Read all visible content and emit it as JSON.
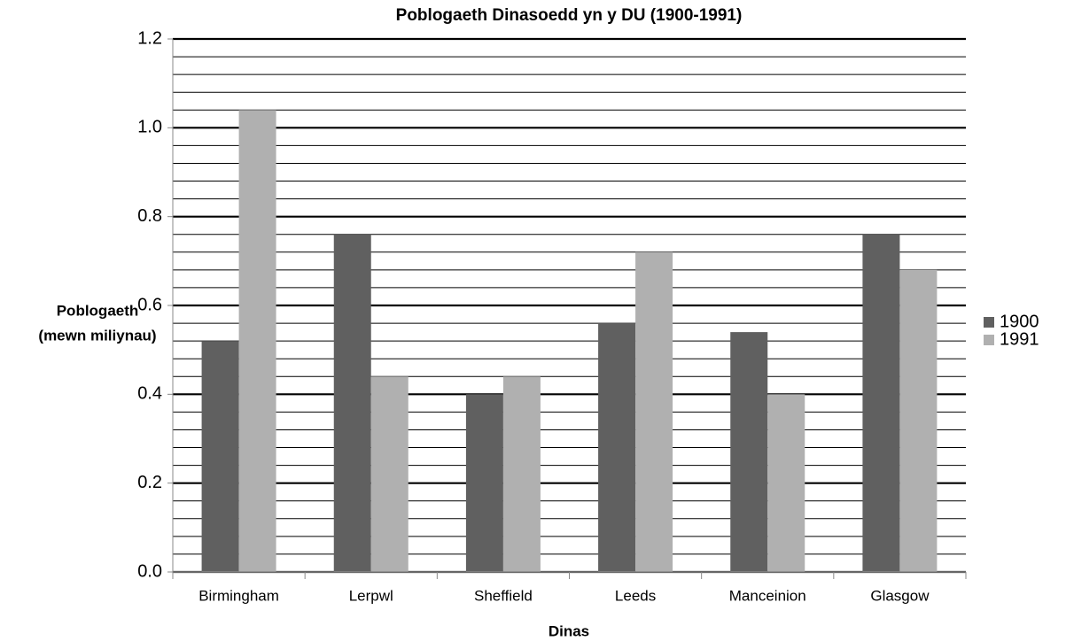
{
  "chart_data": {
    "type": "bar",
    "title": "Poblogaeth Dinasoedd yn y DU (1900-1991)",
    "y_label": [
      "Poblogaeth",
      "(mewn miliynau)"
    ],
    "x_label": "Dinas",
    "categories": [
      "Birmingham",
      "Lerpwl",
      "Sheffield",
      "Leeds",
      "Manceinion",
      "Glasgow"
    ],
    "series": [
      {
        "name": "1900",
        "color": "#606060",
        "values": [
          0.52,
          0.76,
          0.4,
          0.56,
          0.54,
          0.76
        ]
      },
      {
        "name": "1991",
        "color": "#b0b0b0",
        "values": [
          1.04,
          0.44,
          0.44,
          0.72,
          0.4,
          0.68
        ]
      }
    ],
    "ylim": [
      0,
      1.2
    ],
    "yticks": [
      {
        "value": 0,
        "label": "0.0"
      },
      0.2,
      0.4,
      0.6,
      0.8,
      {
        "value": 1,
        "label": "1.0"
      },
      1.2
    ],
    "yminor_ticks": [
      0.04,
      0.08,
      0.12,
      0.16,
      0.24,
      0.28,
      0.32,
      0.36,
      0.44,
      0.48,
      0.52,
      0.56,
      0.64,
      0.68,
      0.72,
      0.76,
      0.84,
      0.88,
      0.92,
      0.96,
      1.04,
      1.08,
      1.12,
      1.16
    ],
    "grid": true,
    "legend": "right"
  }
}
